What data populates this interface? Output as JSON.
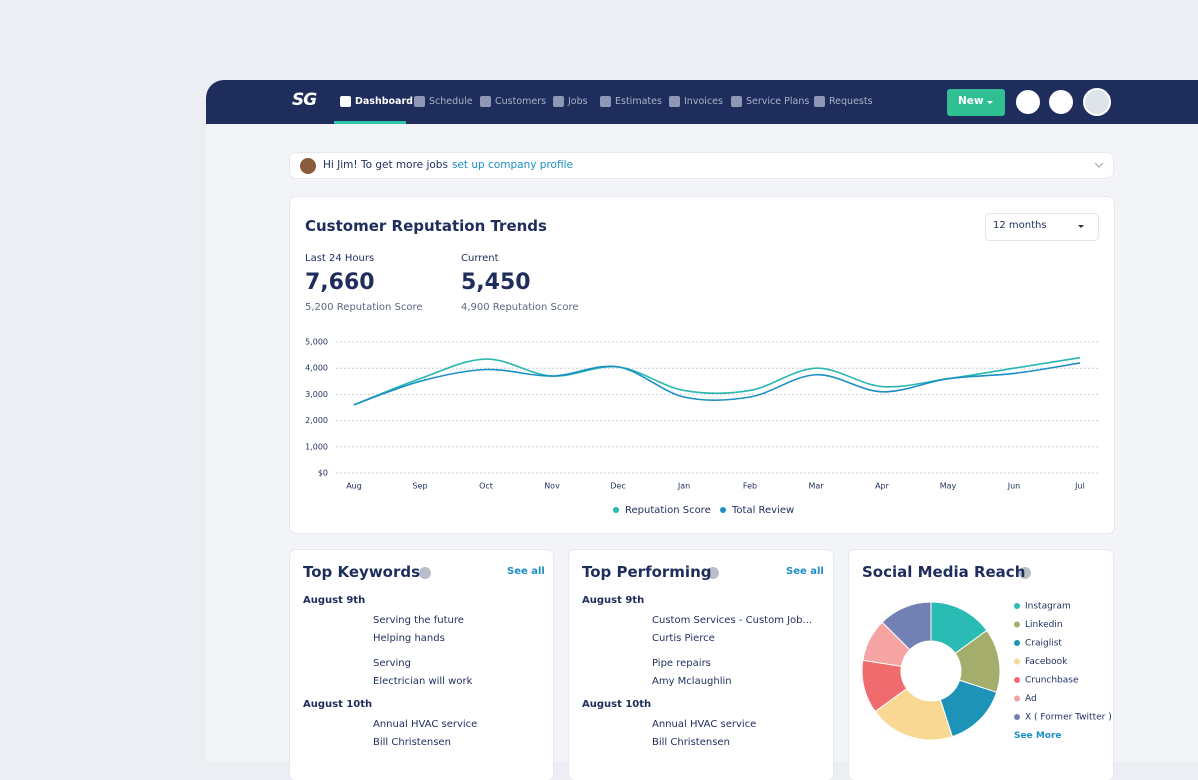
{
  "nav": {
    "logo": "SG",
    "items": [
      "Dashboard",
      "Schedule",
      "Customers",
      "Jobs",
      "Estimates",
      "Invoices",
      "Service Plans",
      "Requests"
    ],
    "new_button": "New"
  },
  "banner": {
    "greeting": "Hi Jim! To get more jobs",
    "link": "set up company profile"
  },
  "reputation": {
    "title": "Customer Reputation Trends",
    "period": "12 months",
    "stats": [
      {
        "label": "Last 24 Hours",
        "value": "7,660",
        "sub": "5,200 Reputation Score"
      },
      {
        "label": "Current",
        "value": "5,450",
        "sub": "4,900 Reputation Score"
      }
    ]
  },
  "chart_data": {
    "type": "line",
    "categories": [
      "Aug",
      "Sep",
      "Oct",
      "Nov",
      "Dec",
      "Jan",
      "Feb",
      "Mar",
      "Apr",
      "May",
      "Jun",
      "Jul"
    ],
    "series": [
      {
        "name": "Reputation Score",
        "color": "#2ab7b0",
        "values": [
          2600,
          3600,
          4350,
          3700,
          4050,
          3150,
          3150,
          4000,
          3300,
          3600,
          4000,
          4400
        ]
      },
      {
        "name": "Total Review",
        "color": "#1b8fc6",
        "values": [
          2600,
          3500,
          3950,
          3700,
          4050,
          2900,
          2900,
          3750,
          3100,
          3600,
          3800,
          4200
        ]
      }
    ],
    "ylim": [
      0,
      5000
    ],
    "yticks": [
      {
        "value": 0,
        "label": "$0"
      },
      {
        "value": 1000,
        "label": "1,000"
      },
      {
        "value": 2000,
        "label": "2,000"
      },
      {
        "value": 3000,
        "label": "3,000"
      },
      {
        "value": 4000,
        "label": "4,000"
      },
      {
        "value": 5000,
        "label": "5,000"
      }
    ],
    "grid": true
  },
  "keywords": {
    "title": "Top Keywords",
    "see_all": "See all",
    "groups": [
      {
        "date": "August 9th",
        "items": [
          {
            "title": "Serving the future",
            "subtitle": "Helping hands"
          },
          {
            "title": "Serving",
            "subtitle": "Electrician will work"
          }
        ]
      },
      {
        "date": "August 10th",
        "items": [
          {
            "title": "Annual HVAC service",
            "subtitle": "Bill Christensen"
          }
        ]
      }
    ]
  },
  "performing": {
    "title": "Top Performing",
    "see_all": "See all",
    "groups": [
      {
        "date": "August 9th",
        "items": [
          {
            "title": "Custom Services  - Custom Job...",
            "subtitle": "Curtis Pierce"
          },
          {
            "title": "Pipe repairs",
            "subtitle": "Amy Mclaughlin"
          }
        ]
      },
      {
        "date": "August 10th",
        "items": [
          {
            "title": "Annual HVAC service",
            "subtitle": "Bill Christensen"
          }
        ]
      }
    ]
  },
  "social": {
    "title": "Social Media Reach",
    "see_more": "See More",
    "items": [
      {
        "name": "Instagram",
        "color": "#2bbbb5",
        "value": 12
      },
      {
        "name": "Linkedin",
        "color": "#a4ad6c",
        "value": 12
      },
      {
        "name": "Craiglist",
        "color": "#1e93b8",
        "value": 12
      },
      {
        "name": "Facebook",
        "color": "#f8d893",
        "value": 16
      },
      {
        "name": "Crunchbase",
        "color": "#f06b6e",
        "value": 10
      },
      {
        "name": "Ad",
        "color": "#f5a3a3",
        "value": 8
      },
      {
        "name": "X ( Former Twitter )",
        "color": "#7280b3",
        "value": 10
      }
    ]
  }
}
